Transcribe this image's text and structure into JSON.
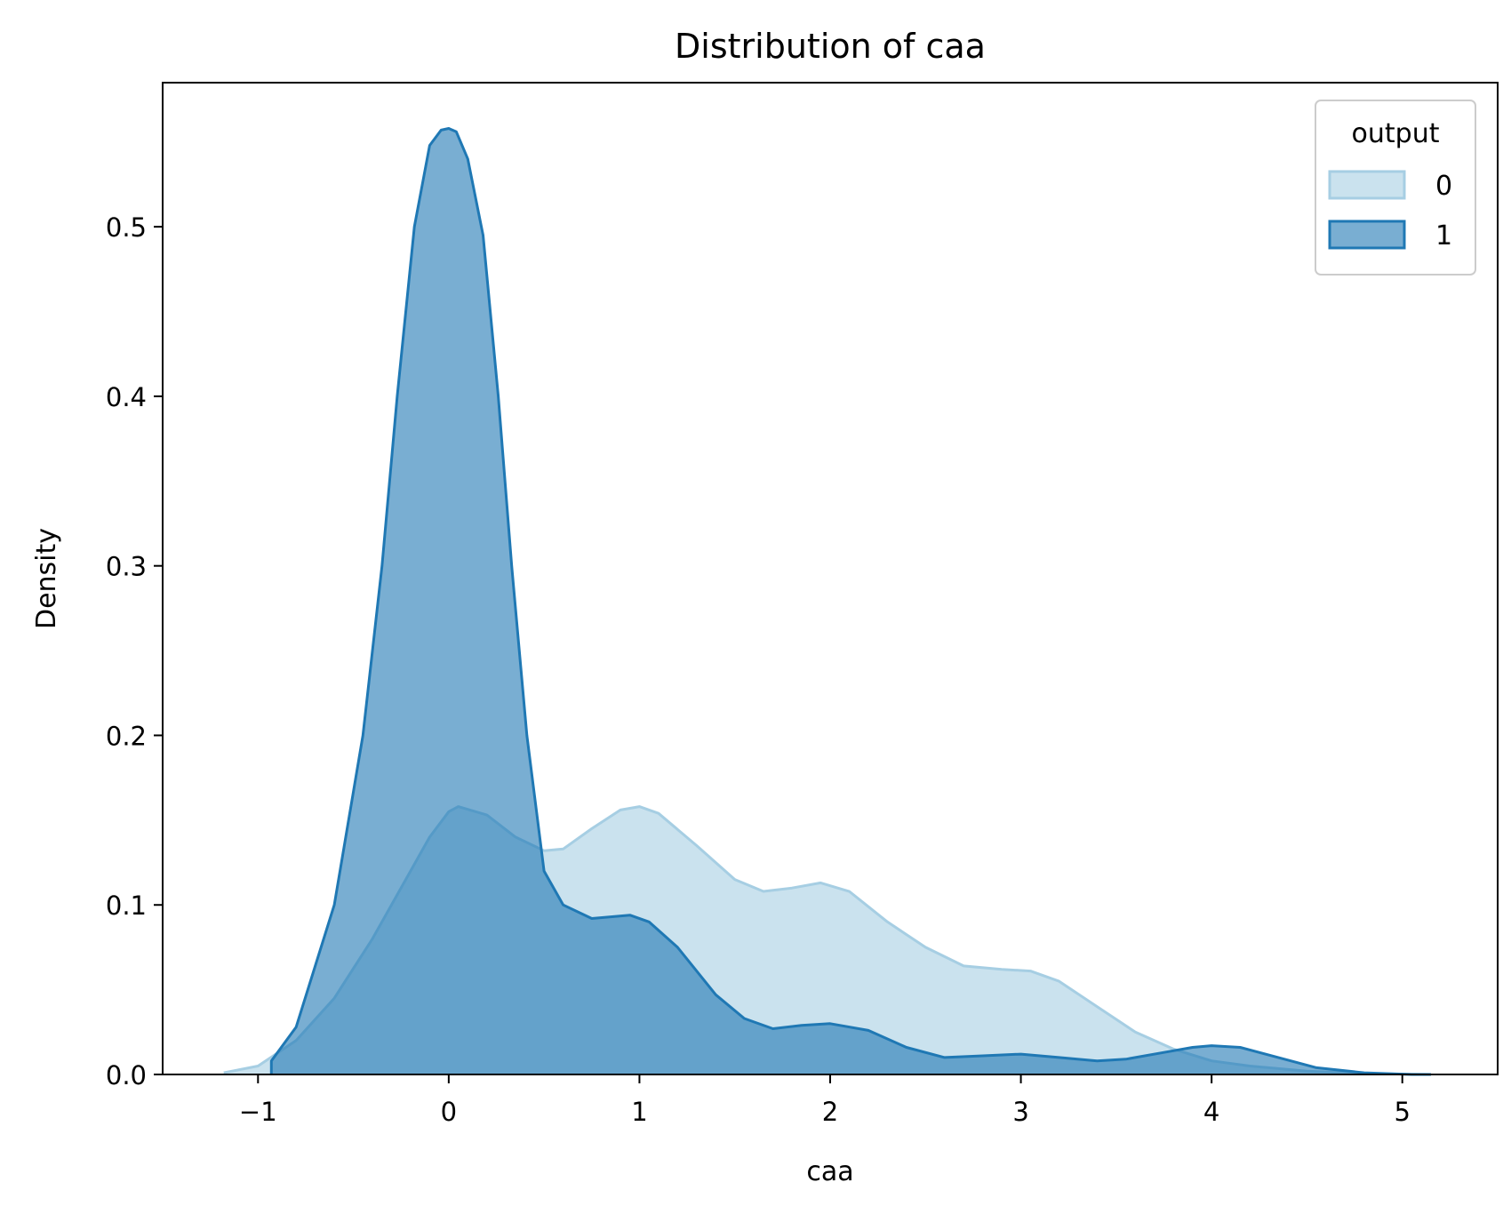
{
  "chart_data": {
    "type": "area",
    "title": "Distribution of caa",
    "xlabel": "caa",
    "ylabel": "Density",
    "xlim": [
      -1.5,
      5.5
    ],
    "ylim": [
      0,
      0.585
    ],
    "grid": false,
    "x_ticks": [
      -1,
      0,
      1,
      2,
      3,
      4,
      5
    ],
    "x_tick_labels": [
      "−1",
      "0",
      "1",
      "2",
      "3",
      "4",
      "5"
    ],
    "y_ticks": [
      0.0,
      0.1,
      0.2,
      0.3,
      0.4,
      0.5
    ],
    "y_tick_labels": [
      "0.0",
      "0.1",
      "0.2",
      "0.3",
      "0.4",
      "0.5"
    ],
    "legend": {
      "title": "output",
      "placement": "top-right"
    },
    "series": [
      {
        "name": "0",
        "fill_color": "#a6cee3",
        "line_color": "#a6cee3",
        "fill_opacity": 0.6,
        "points": [
          [
            -1.18,
            0.001
          ],
          [
            -1.0,
            0.005
          ],
          [
            -0.8,
            0.02
          ],
          [
            -0.6,
            0.045
          ],
          [
            -0.4,
            0.08
          ],
          [
            -0.2,
            0.12
          ],
          [
            -0.1,
            0.14
          ],
          [
            0.0,
            0.155
          ],
          [
            0.05,
            0.158
          ],
          [
            0.2,
            0.153
          ],
          [
            0.35,
            0.14
          ],
          [
            0.5,
            0.132
          ],
          [
            0.6,
            0.133
          ],
          [
            0.75,
            0.145
          ],
          [
            0.9,
            0.156
          ],
          [
            1.0,
            0.158
          ],
          [
            1.1,
            0.154
          ],
          [
            1.3,
            0.135
          ],
          [
            1.5,
            0.115
          ],
          [
            1.65,
            0.108
          ],
          [
            1.8,
            0.11
          ],
          [
            1.95,
            0.113
          ],
          [
            2.1,
            0.108
          ],
          [
            2.3,
            0.09
          ],
          [
            2.5,
            0.075
          ],
          [
            2.7,
            0.064
          ],
          [
            2.9,
            0.062
          ],
          [
            3.05,
            0.061
          ],
          [
            3.2,
            0.055
          ],
          [
            3.4,
            0.04
          ],
          [
            3.6,
            0.025
          ],
          [
            3.8,
            0.015
          ],
          [
            4.0,
            0.008
          ],
          [
            4.2,
            0.005
          ],
          [
            4.5,
            0.002
          ],
          [
            4.8,
            0.0005
          ],
          [
            5.15,
            0.0
          ]
        ]
      },
      {
        "name": "1",
        "fill_color": "#1f78b4",
        "line_color": "#1f78b4",
        "fill_opacity": 0.6,
        "points": [
          [
            -0.93,
            0.0
          ],
          [
            -0.93,
            0.008
          ],
          [
            -0.8,
            0.028
          ],
          [
            -0.6,
            0.1
          ],
          [
            -0.45,
            0.2
          ],
          [
            -0.35,
            0.3
          ],
          [
            -0.27,
            0.4
          ],
          [
            -0.18,
            0.5
          ],
          [
            -0.1,
            0.548
          ],
          [
            -0.04,
            0.557
          ],
          [
            0.0,
            0.558
          ],
          [
            0.04,
            0.556
          ],
          [
            0.1,
            0.54
          ],
          [
            0.18,
            0.495
          ],
          [
            0.26,
            0.4
          ],
          [
            0.33,
            0.3
          ],
          [
            0.41,
            0.2
          ],
          [
            0.5,
            0.12
          ],
          [
            0.6,
            0.1
          ],
          [
            0.75,
            0.092
          ],
          [
            0.95,
            0.094
          ],
          [
            1.05,
            0.09
          ],
          [
            1.2,
            0.075
          ],
          [
            1.4,
            0.047
          ],
          [
            1.55,
            0.033
          ],
          [
            1.7,
            0.027
          ],
          [
            1.85,
            0.029
          ],
          [
            2.0,
            0.03
          ],
          [
            2.2,
            0.026
          ],
          [
            2.4,
            0.016
          ],
          [
            2.6,
            0.01
          ],
          [
            2.8,
            0.011
          ],
          [
            3.0,
            0.012
          ],
          [
            3.2,
            0.01
          ],
          [
            3.4,
            0.008
          ],
          [
            3.55,
            0.009
          ],
          [
            3.75,
            0.013
          ],
          [
            3.9,
            0.016
          ],
          [
            4.0,
            0.017
          ],
          [
            4.15,
            0.016
          ],
          [
            4.35,
            0.01
          ],
          [
            4.55,
            0.004
          ],
          [
            4.8,
            0.001
          ],
          [
            5.05,
            0.0
          ],
          [
            5.15,
            0.0
          ]
        ]
      }
    ]
  }
}
